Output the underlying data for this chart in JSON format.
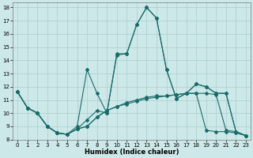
{
  "xlabel": "Humidex (Indice chaleur)",
  "xlim": [
    -0.5,
    23.5
  ],
  "ylim": [
    8,
    18.4
  ],
  "yticks": [
    8,
    9,
    10,
    11,
    12,
    13,
    14,
    15,
    16,
    17,
    18
  ],
  "xticks": [
    0,
    1,
    2,
    3,
    4,
    5,
    6,
    7,
    8,
    9,
    10,
    11,
    12,
    13,
    14,
    15,
    16,
    17,
    18,
    19,
    20,
    21,
    22,
    23
  ],
  "background_color": "#cde8e8",
  "grid_color": "#aacece",
  "line_color": "#1a6b6b",
  "line1_x": [
    0,
    1,
    2,
    3,
    4,
    5,
    6,
    7,
    8,
    9,
    10,
    11,
    12,
    13,
    14,
    15,
    16,
    17,
    18,
    19,
    20,
    21,
    22,
    23
  ],
  "line1_y": [
    11.6,
    10.4,
    10.0,
    9.0,
    8.5,
    8.4,
    9.0,
    13.3,
    11.5,
    10.0,
    14.5,
    14.5,
    16.7,
    18.0,
    17.2,
    13.3,
    11.1,
    11.5,
    12.2,
    12.0,
    11.5,
    11.5,
    8.6,
    8.3
  ],
  "line2_x": [
    0,
    1,
    2,
    3,
    4,
    5,
    6,
    7,
    8,
    9,
    10,
    11,
    12,
    13,
    14,
    15,
    16,
    17,
    18,
    19,
    20,
    21,
    22,
    23
  ],
  "line2_y": [
    11.6,
    10.4,
    10.0,
    9.0,
    8.5,
    8.4,
    8.8,
    9.5,
    10.2,
    10.0,
    14.4,
    14.5,
    16.7,
    18.0,
    17.2,
    13.3,
    11.1,
    11.5,
    12.2,
    12.0,
    11.5,
    11.5,
    8.6,
    8.3
  ],
  "line3_x": [
    0,
    1,
    2,
    3,
    4,
    5,
    6,
    7,
    8,
    9,
    10,
    11,
    12,
    13,
    14,
    15,
    16,
    17,
    18,
    19,
    20,
    21,
    22,
    23
  ],
  "line3_y": [
    11.6,
    10.4,
    10.0,
    9.0,
    8.5,
    8.4,
    8.8,
    9.0,
    9.7,
    10.2,
    10.5,
    10.8,
    11.0,
    11.2,
    11.3,
    11.3,
    11.4,
    11.5,
    11.5,
    11.5,
    11.4,
    8.7,
    8.6,
    8.3
  ],
  "line4_x": [
    0,
    1,
    2,
    3,
    4,
    5,
    6,
    7,
    8,
    9,
    10,
    11,
    12,
    13,
    14,
    15,
    16,
    17,
    18,
    19,
    20,
    21,
    22,
    23
  ],
  "line4_y": [
    11.6,
    10.4,
    10.0,
    9.0,
    8.5,
    8.4,
    8.8,
    9.0,
    9.7,
    10.2,
    10.5,
    10.7,
    10.9,
    11.1,
    11.2,
    11.3,
    11.4,
    11.5,
    11.5,
    8.7,
    8.6,
    8.6,
    8.5,
    8.3
  ]
}
